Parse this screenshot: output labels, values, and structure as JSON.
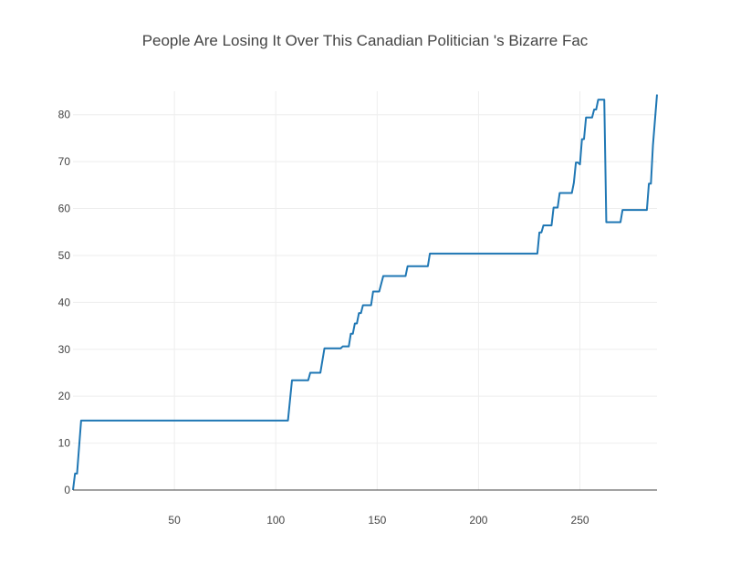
{
  "chart_data": {
    "type": "line",
    "title": "People Are Losing It Over This Canadian Politician 's Bizarre Fac",
    "xlabel": "",
    "ylabel": "",
    "xlim": [
      0,
      288
    ],
    "ylim": [
      0,
      85
    ],
    "grid": true,
    "x_ticks": [
      50,
      100,
      150,
      200,
      250
    ],
    "y_ticks": [
      0,
      10,
      20,
      30,
      40,
      50,
      60,
      70,
      80
    ],
    "series": [
      {
        "color": "#1f77b4",
        "points": [
          [
            0,
            0
          ],
          [
            1,
            3.5
          ],
          [
            2,
            3.5
          ],
          [
            4,
            14.8
          ],
          [
            106,
            14.8
          ],
          [
            108,
            23.4
          ],
          [
            116,
            23.4
          ],
          [
            117,
            25
          ],
          [
            122,
            25
          ],
          [
            124,
            30.2
          ],
          [
            132,
            30.2
          ],
          [
            133,
            30.6
          ],
          [
            136,
            30.6
          ],
          [
            137,
            33.3
          ],
          [
            138,
            33.3
          ],
          [
            139,
            35.5
          ],
          [
            140,
            35.5
          ],
          [
            141,
            37.7
          ],
          [
            142,
            37.7
          ],
          [
            143,
            39.4
          ],
          [
            147,
            39.4
          ],
          [
            148,
            42.3
          ],
          [
            151,
            42.3
          ],
          [
            153,
            45.6
          ],
          [
            164,
            45.6
          ],
          [
            165,
            47.7
          ],
          [
            175,
            47.7
          ],
          [
            176,
            50.4
          ],
          [
            229,
            50.4
          ],
          [
            230,
            54.9
          ],
          [
            231,
            54.9
          ],
          [
            232,
            56.4
          ],
          [
            236,
            56.4
          ],
          [
            237,
            60.2
          ],
          [
            239,
            60.2
          ],
          [
            240,
            63.3
          ],
          [
            246,
            63.3
          ],
          [
            247,
            65.5
          ],
          [
            248,
            69.8
          ],
          [
            249,
            69.8
          ],
          [
            250,
            69.4
          ],
          [
            251,
            74.8
          ],
          [
            252,
            74.8
          ],
          [
            253,
            79.4
          ],
          [
            256,
            79.4
          ],
          [
            257,
            81.1
          ],
          [
            258,
            81.1
          ],
          [
            259,
            83.2
          ],
          [
            262,
            83.2
          ],
          [
            263,
            57.1
          ],
          [
            270,
            57.1
          ],
          [
            271,
            59.7
          ],
          [
            283,
            59.7
          ],
          [
            284,
            65.3
          ],
          [
            285,
            65.3
          ],
          [
            286,
            73.5
          ],
          [
            288,
            84.3
          ]
        ]
      }
    ]
  }
}
